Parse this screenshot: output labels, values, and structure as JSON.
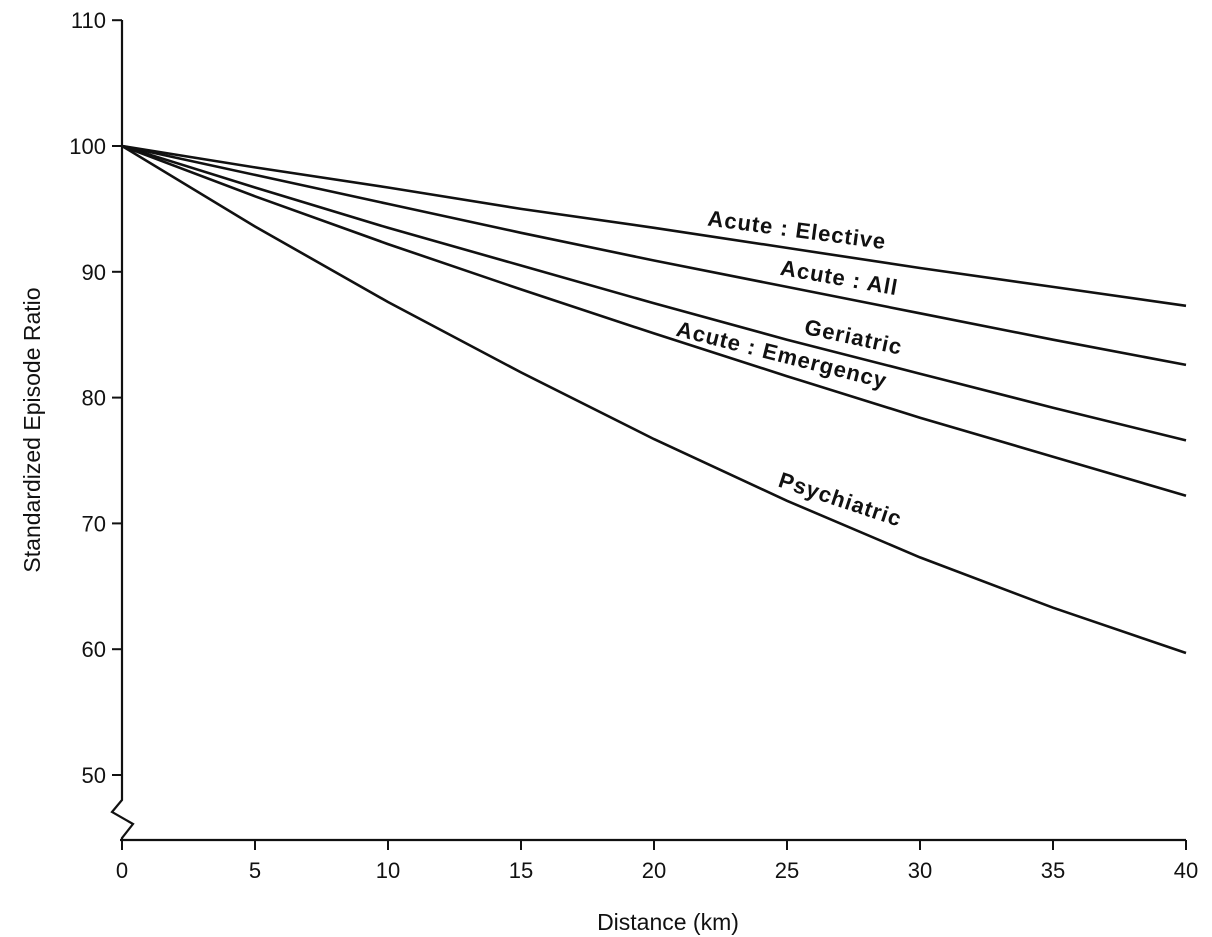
{
  "chart_data": {
    "type": "line",
    "title": "",
    "xlabel": "Distance (km)",
    "ylabel": "Standardized Episode Ratio",
    "xlim": [
      0,
      40
    ],
    "ylim": [
      45,
      110
    ],
    "x_ticks": [
      0,
      5,
      10,
      15,
      20,
      25,
      30,
      35,
      40
    ],
    "y_ticks": [
      50,
      60,
      70,
      80,
      90,
      100,
      110
    ],
    "y_axis_break": true,
    "grid": false,
    "legend": "none (series labeled inline)",
    "x": [
      0,
      5,
      10,
      15,
      20,
      25,
      30,
      35,
      40
    ],
    "series": [
      {
        "name": "Acute : Elective",
        "values": [
          100,
          98.3,
          96.7,
          95.0,
          93.5,
          91.9,
          90.3,
          88.8,
          87.3
        ]
      },
      {
        "name": "Acute : All",
        "values": [
          100,
          97.7,
          95.4,
          93.1,
          90.9,
          88.8,
          86.7,
          84.6,
          82.6
        ]
      },
      {
        "name": "Geriatric",
        "values": [
          100,
          96.7,
          93.5,
          90.5,
          87.5,
          84.6,
          81.9,
          79.2,
          76.6
        ]
      },
      {
        "name": "Acute : Emergency",
        "values": [
          100,
          96.0,
          92.2,
          88.6,
          85.1,
          81.7,
          78.4,
          75.3,
          72.2
        ]
      },
      {
        "name": "Psychiatric",
        "values": [
          100,
          93.6,
          87.6,
          82.0,
          76.7,
          71.8,
          67.3,
          63.3,
          59.7
        ]
      }
    ]
  }
}
